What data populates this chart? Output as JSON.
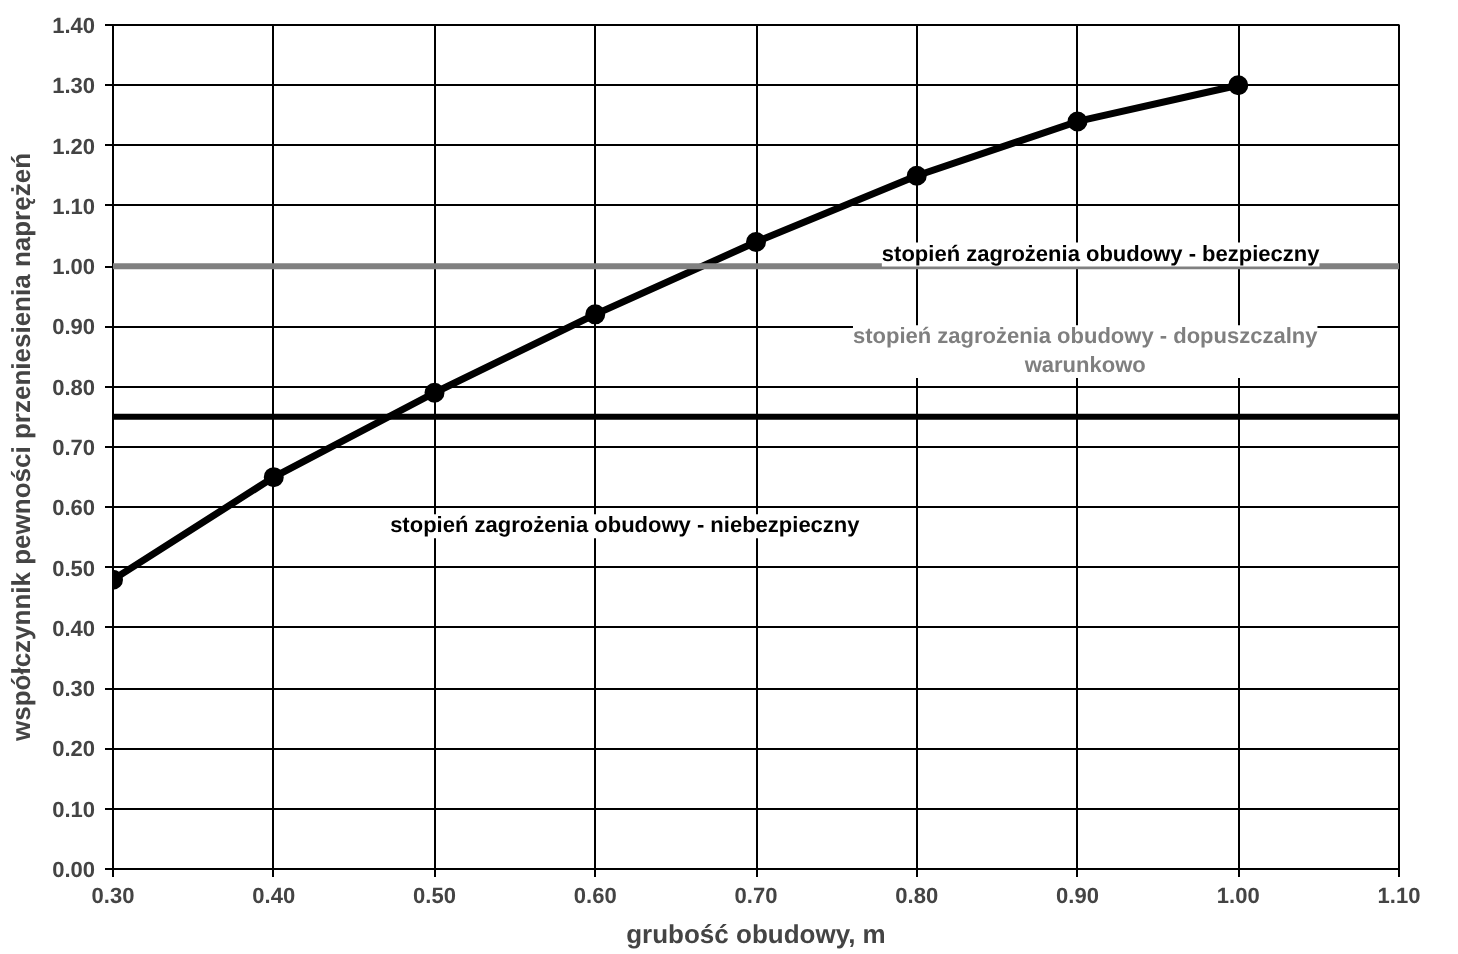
{
  "chart_data": {
    "type": "line",
    "xlabel": "grubość obudowy, m",
    "ylabel": "współczynnik pewności przeniesienia naprężeń",
    "x": [
      0.3,
      0.4,
      0.5,
      0.6,
      0.7,
      0.8,
      0.9,
      1.0
    ],
    "series": [
      {
        "color": "#000000",
        "values": [
          0.48,
          0.65,
          0.79,
          0.92,
          1.04,
          1.15,
          1.24,
          1.3
        ]
      }
    ],
    "xlim": [
      0.3,
      1.1
    ],
    "xticks": [
      {
        "value": 0.3,
        "label": "0.30"
      },
      {
        "value": 0.4,
        "label": "0.40"
      },
      {
        "value": 0.5,
        "label": "0.50"
      },
      {
        "value": 0.6,
        "label": "0.60"
      },
      {
        "value": 0.7,
        "label": "0.70"
      },
      {
        "value": 0.8,
        "label": "0.80"
      },
      {
        "value": 0.9,
        "label": "0.90"
      },
      {
        "value": 1.0,
        "label": "1.00"
      },
      {
        "value": 1.1,
        "label": "1.10"
      }
    ],
    "ylim": [
      0,
      1.4
    ],
    "yticks": [
      {
        "value": 0,
        "label": "0.00"
      },
      {
        "value": 0.1,
        "label": "0.10"
      },
      {
        "value": 0.2,
        "label": "0.20"
      },
      {
        "value": 0.3,
        "label": "0.30"
      },
      {
        "value": 0.4,
        "label": "0.40"
      },
      {
        "value": 0.5,
        "label": "0.50"
      },
      {
        "value": 0.6,
        "label": "0.60"
      },
      {
        "value": 0.7,
        "label": "0.70"
      },
      {
        "value": 0.8,
        "label": "0.80"
      },
      {
        "value": 0.9,
        "label": "0.90"
      },
      {
        "value": 1.0,
        "label": "1.00"
      },
      {
        "value": 1.1,
        "label": "1.10"
      },
      {
        "value": 1.2,
        "label": "1.20"
      },
      {
        "value": 1.3,
        "label": "1.30"
      },
      {
        "value": 1.4,
        "label": "1.40"
      }
    ],
    "ref_lines": [
      {
        "axis": "y",
        "value": 1.0,
        "color": "#808080"
      },
      {
        "axis": "y",
        "value": 0.75,
        "color": "#000000"
      }
    ],
    "annotations": [
      "stopień zagrożenia obudowy - bezpieczny",
      "stopień zagrożenia obudowy - dopuszczalny\nwarunkowo",
      "stopień zagrożenia obudowy - niebezpieczny"
    ],
    "grid": true,
    "marker": "circle",
    "line_style": "solid"
  }
}
